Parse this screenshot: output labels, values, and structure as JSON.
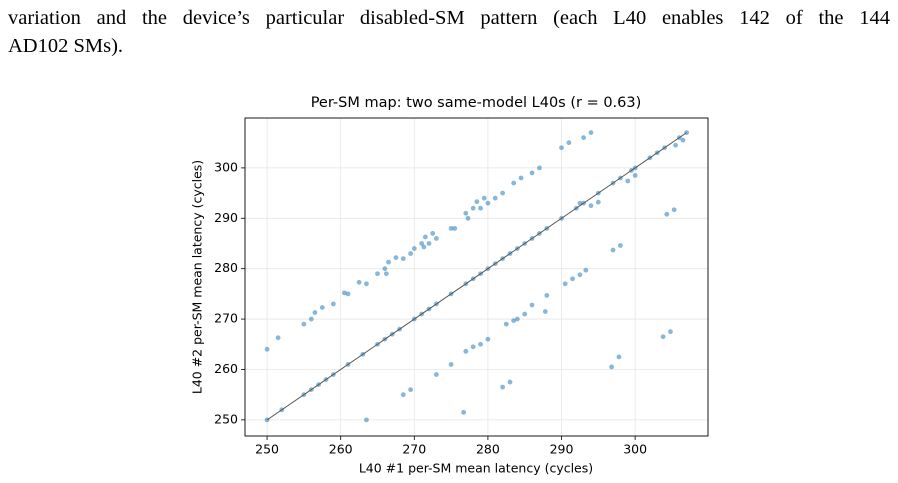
{
  "paragraph": {
    "lines": [
      "variation and the device’s particular disabled-SM pattern (each L40 enables 142 of the 144",
      "AD102 SMs)."
    ]
  },
  "chart_data": {
    "type": "scatter",
    "title": "Per-SM map: two same-model L40s (r = 0.63)",
    "xlabel": "L40 #1 per-SM mean latency (cycles)",
    "ylabel": "L40 #2 per-SM mean latency (cycles)",
    "color": "#3b87bf",
    "grid": true,
    "xlim": [
      247,
      309.9
    ],
    "ylim": [
      246.8,
      309.9
    ],
    "xticks": [
      250,
      260,
      270,
      280,
      290,
      300
    ],
    "yticks": [
      250,
      260,
      270,
      280,
      290,
      300
    ],
    "line": {
      "x": [
        250,
        307
      ],
      "values": [
        250,
        307
      ],
      "color": "#555555"
    },
    "x": [
      250,
      252,
      255,
      256,
      257,
      258,
      259,
      261,
      263,
      265,
      266,
      267,
      268,
      270,
      271,
      272,
      273,
      275,
      277,
      278,
      279,
      280,
      281,
      282,
      283,
      284,
      285,
      286,
      287,
      288,
      290,
      292,
      293,
      295,
      297,
      298,
      299.5,
      300,
      302,
      303,
      304,
      306,
      307,
      250,
      251.5,
      255,
      256,
      256.5,
      257.5,
      259,
      260.5,
      261,
      262.5,
      263.5,
      265,
      266,
      266.2,
      266.5,
      267.5,
      268.5,
      269.5,
      270,
      271,
      271.3,
      271.5,
      272,
      272.5,
      273,
      275,
      275.5,
      277,
      277.3,
      278,
      278.5,
      279,
      279.5,
      280,
      281,
      282,
      283.5,
      284.5,
      286,
      287,
      290,
      291,
      293,
      294,
      263.5,
      268.5,
      269.5,
      273,
      275,
      277,
      278,
      279,
      280,
      282,
      283,
      282.5,
      283.5,
      284,
      285,
      286,
      287.8,
      288,
      290.5,
      291.5,
      292.5,
      293.3,
      297,
      298,
      296.8,
      297.8,
      303.8,
      304.8,
      304.3,
      305.3,
      276.7,
      292.5,
      294,
      295,
      299,
      300,
      305.5,
      306.5
    ],
    "values": [
      250,
      252,
      255,
      256,
      257,
      258,
      259,
      261,
      263,
      265,
      266,
      267,
      268,
      270,
      271,
      272,
      273,
      275,
      277,
      278,
      279,
      280,
      281,
      282,
      283,
      284,
      285,
      286,
      287,
      288,
      290,
      292,
      293,
      295,
      297,
      298,
      299.5,
      300,
      302,
      303,
      304,
      306,
      307,
      264,
      266.3,
      269,
      270,
      271.3,
      272.3,
      273,
      275.2,
      275,
      277.3,
      277,
      279,
      280,
      279,
      281.3,
      282.2,
      282,
      283,
      284,
      285,
      284.3,
      286.3,
      285,
      287,
      286,
      288,
      288,
      291,
      290,
      292,
      293.3,
      292,
      294,
      293,
      294,
      295,
      297,
      298,
      299,
      300,
      304,
      305,
      306,
      307,
      250,
      255,
      256,
      259,
      261,
      263.6,
      264.5,
      265,
      266,
      256.5,
      257.5,
      269,
      269.7,
      270,
      271,
      272.8,
      271.5,
      274.7,
      277,
      278,
      278.8,
      279.7,
      283.7,
      284.6,
      260.5,
      262.5,
      266.5,
      267.5,
      290.8,
      291.7,
      251.5,
      293,
      292.5,
      293.2,
      297.4,
      298.5,
      304.5,
      305.5
    ]
  }
}
